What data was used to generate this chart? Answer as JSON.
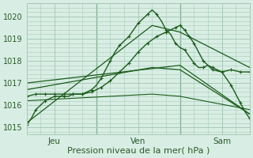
{
  "bg_color": "#d8eee4",
  "grid_color": "#a8c8b8",
  "line_color": "#1a5c1a",
  "marker_color": "#1a5c1a",
  "xlabel": "Pression niveau de la mer( hPa )",
  "xlabel_fontsize": 8,
  "tick_label_color": "#2a5a2a",
  "yticks": [
    1015,
    1016,
    1017,
    1018,
    1019,
    1020
  ],
  "ylim": [
    1014.7,
    1020.6
  ],
  "xlim": [
    0,
    48
  ],
  "xtick_positions": [
    6,
    24,
    42
  ],
  "xtick_labels": [
    "Jeu",
    "Ven",
    "Sam"
  ],
  "day_lines": [
    15,
    33
  ],
  "series": [
    {
      "x": [
        0,
        1,
        2,
        3,
        4,
        5,
        6,
        7,
        8,
        9,
        10,
        11,
        12,
        13,
        14,
        15,
        16,
        17,
        18,
        19,
        20,
        21,
        22,
        23,
        24,
        25,
        26,
        27,
        28,
        29,
        30,
        31,
        32,
        33,
        34,
        35,
        36,
        37,
        38,
        39,
        40,
        41,
        42,
        43,
        44,
        45,
        46,
        47,
        48
      ],
      "y": [
        1015.1,
        1015.4,
        1015.8,
        1016.0,
        1016.2,
        1016.3,
        1016.4,
        1016.4,
        1016.4,
        1016.4,
        1016.5,
        1016.5,
        1016.5,
        1016.6,
        1016.7,
        1016.9,
        1017.2,
        1017.6,
        1018.0,
        1018.4,
        1018.7,
        1018.9,
        1019.1,
        1019.4,
        1019.7,
        1019.9,
        1020.1,
        1020.3,
        1020.1,
        1019.8,
        1019.4,
        1019.2,
        1018.8,
        1018.6,
        1018.5,
        1018.2,
        1017.9,
        1017.7,
        1017.7,
        1017.8,
        1017.7,
        1017.6,
        1017.5,
        1017.2,
        1016.9,
        1016.5,
        1016.1,
        1015.7,
        1015.4
      ],
      "marker": "+",
      "linewidth": 1.0,
      "markersize": 3.5,
      "markevery": 2
    },
    {
      "x": [
        0,
        2,
        4,
        6,
        8,
        10,
        12,
        14,
        16,
        18,
        20,
        22,
        24,
        26,
        28,
        30,
        32,
        33,
        34,
        35,
        36,
        38,
        40,
        42,
        44,
        46,
        48
      ],
      "y": [
        1016.4,
        1016.5,
        1016.5,
        1016.5,
        1016.5,
        1016.5,
        1016.5,
        1016.6,
        1016.8,
        1017.1,
        1017.5,
        1017.9,
        1018.4,
        1018.8,
        1019.1,
        1019.3,
        1019.5,
        1019.6,
        1019.4,
        1019.1,
        1018.8,
        1018.0,
        1017.6,
        1017.5,
        1017.6,
        1017.5,
        1017.5
      ],
      "marker": "+",
      "linewidth": 1.0,
      "markersize": 3.5,
      "markevery": 1
    },
    {
      "x": [
        0,
        27,
        33,
        48
      ],
      "y": [
        1015.2,
        1019.6,
        1019.3,
        1017.7
      ],
      "marker": null,
      "linewidth": 0.9,
      "markersize": 0,
      "markevery": 1
    },
    {
      "x": [
        0,
        27,
        33,
        48
      ],
      "y": [
        1016.7,
        1017.7,
        1017.6,
        1015.6
      ],
      "marker": null,
      "linewidth": 0.9,
      "markersize": 0,
      "markevery": 1
    },
    {
      "x": [
        0,
        33,
        48
      ],
      "y": [
        1017.0,
        1017.8,
        1015.6
      ],
      "marker": null,
      "linewidth": 0.9,
      "markersize": 0,
      "markevery": 1
    },
    {
      "x": [
        0,
        27,
        33,
        48
      ],
      "y": [
        1016.2,
        1016.5,
        1016.4,
        1015.8
      ],
      "marker": null,
      "linewidth": 0.8,
      "markersize": 0,
      "markevery": 1
    }
  ]
}
